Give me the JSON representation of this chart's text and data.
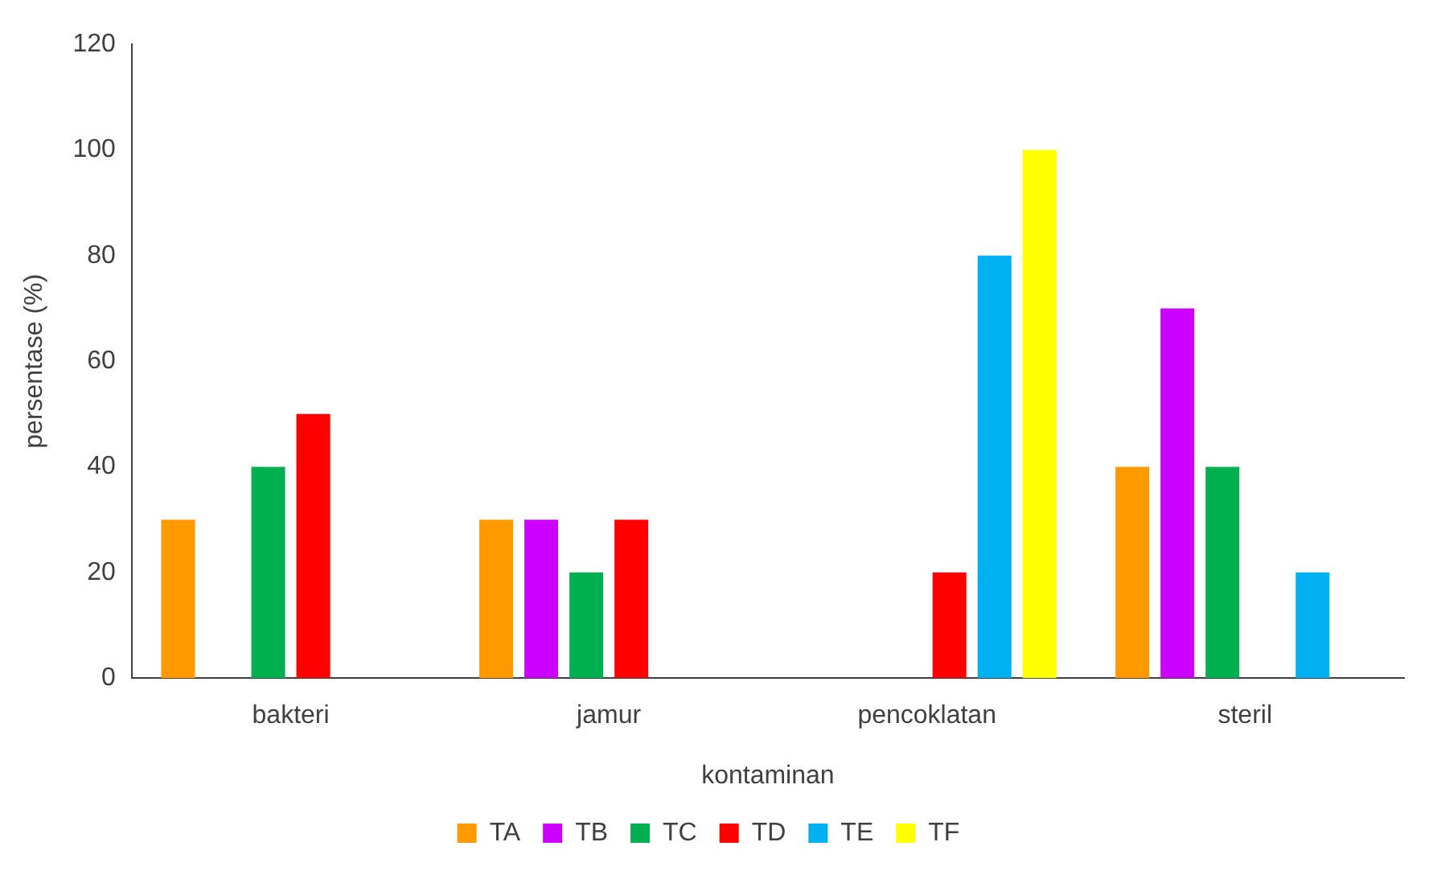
{
  "chart_data": {
    "type": "bar",
    "xlabel": "kontaminan",
    "ylabel": "persentase (%)",
    "categories": [
      "bakteri",
      "jamur",
      "pencoklatan",
      "steril"
    ],
    "series": [
      {
        "name": "TA",
        "color": "#ff9900",
        "values": [
          30,
          30,
          0,
          40
        ]
      },
      {
        "name": "TB",
        "color": "#cc00ff",
        "values": [
          0,
          30,
          0,
          70
        ]
      },
      {
        "name": "TC",
        "color": "#00b050",
        "values": [
          40,
          20,
          0,
          40
        ]
      },
      {
        "name": "TD",
        "color": "#ff0000",
        "values": [
          50,
          30,
          20,
          0
        ]
      },
      {
        "name": "TE",
        "color": "#00b0f0",
        "values": [
          0,
          0,
          80,
          20
        ]
      },
      {
        "name": "TF",
        "color": "#ffff00",
        "values": [
          0,
          0,
          100,
          0
        ]
      }
    ],
    "ylim": [
      0,
      120
    ],
    "yticks": [
      0,
      20,
      40,
      60,
      80,
      100,
      120
    ],
    "grid": false,
    "legend": "bottom"
  }
}
